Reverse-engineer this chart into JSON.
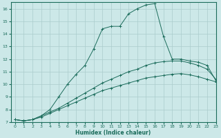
{
  "xlabel": "Humidex (Indice chaleur)",
  "bg_color": "#cce8e8",
  "grid_color": "#aacccc",
  "line_color": "#1a6b5a",
  "xlim": [
    -0.5,
    23
  ],
  "ylim": [
    7,
    16.5
  ],
  "xticks": [
    0,
    1,
    2,
    3,
    4,
    5,
    6,
    7,
    8,
    9,
    10,
    11,
    12,
    13,
    14,
    15,
    16,
    17,
    18,
    19,
    20,
    21,
    22,
    23
  ],
  "yticks": [
    7,
    8,
    9,
    10,
    11,
    12,
    13,
    14,
    15,
    16
  ],
  "series1_x": [
    0,
    1,
    2,
    3,
    4,
    5,
    6,
    7,
    8,
    9,
    10,
    11,
    12,
    13,
    14,
    15,
    16,
    17,
    18,
    19,
    20,
    21,
    22,
    23
  ],
  "series1_y": [
    7.2,
    7.1,
    7.2,
    7.4,
    7.7,
    8.0,
    8.3,
    8.6,
    8.9,
    9.2,
    9.5,
    9.7,
    9.9,
    10.1,
    10.3,
    10.5,
    10.6,
    10.7,
    10.8,
    10.85,
    10.75,
    10.6,
    10.4,
    10.2
  ],
  "series2_x": [
    0,
    1,
    2,
    3,
    4,
    5,
    6,
    7,
    8,
    9,
    10,
    11,
    12,
    13,
    14,
    15,
    16,
    17,
    18,
    19,
    20,
    21,
    22,
    23
  ],
  "series2_y": [
    7.2,
    7.1,
    7.2,
    7.5,
    7.8,
    8.1,
    8.5,
    8.9,
    9.3,
    9.7,
    10.1,
    10.4,
    10.7,
    11.0,
    11.2,
    11.5,
    11.7,
    11.8,
    11.85,
    11.85,
    11.7,
    11.5,
    11.2,
    10.4
  ],
  "series3_x": [
    0,
    1,
    2,
    3,
    4,
    5,
    6,
    7,
    8,
    9,
    10,
    11,
    12,
    13,
    14,
    15,
    16,
    17,
    18,
    19,
    20,
    21,
    22,
    23
  ],
  "series3_y": [
    7.2,
    7.1,
    7.2,
    7.5,
    8.0,
    9.0,
    10.0,
    10.8,
    11.5,
    12.8,
    14.4,
    14.6,
    14.6,
    15.6,
    16.0,
    16.3,
    16.4,
    13.8,
    12.0,
    12.0,
    11.85,
    11.75,
    11.5,
    10.3
  ]
}
